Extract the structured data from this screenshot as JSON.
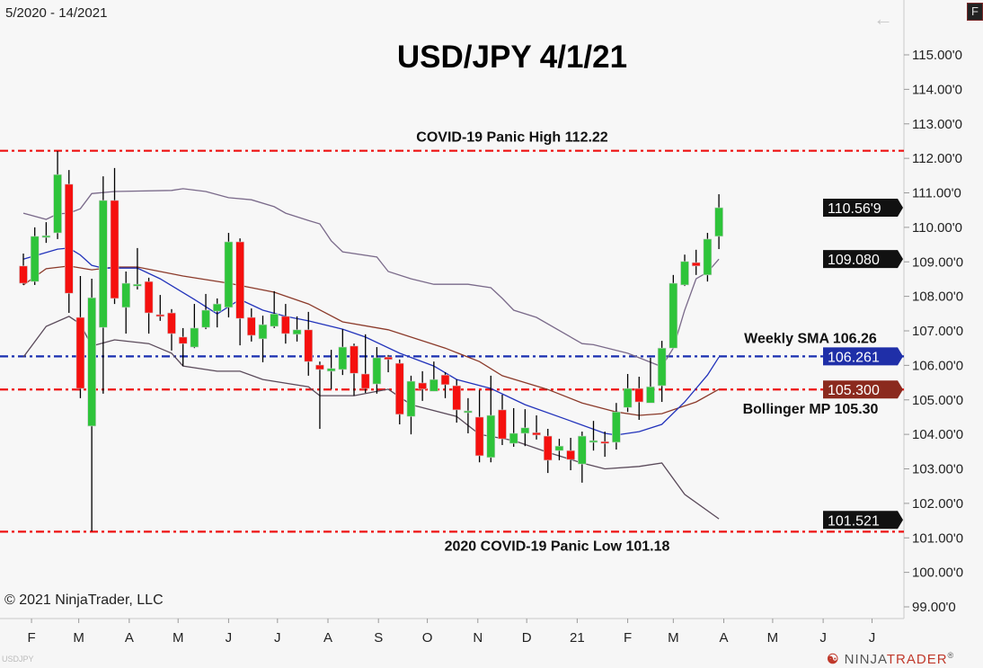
{
  "header": {
    "date_range": "5/2020 - 14/2021",
    "back_icon": "arrow-left-icon",
    "f_button": "F"
  },
  "footer": {
    "copyright": "© 2021 NinjaTrader, LLC",
    "instrument": "USDJPY",
    "logo_text_a": "NINJA",
    "logo_text_b": "TRADER",
    "logo_mark": "®"
  },
  "chart_data": {
    "type": "candlestick",
    "title": "USD/JPY 4/1/21",
    "ylim": [
      98.7,
      116.6
    ],
    "y_ticks": [
      99,
      100,
      101,
      102,
      103,
      104,
      105,
      106,
      107,
      108,
      109,
      110,
      111,
      112,
      113,
      114,
      115
    ],
    "y_tick_format_suffix": "'0",
    "x_ticks": [
      {
        "label": "F",
        "date": "2020-02-01"
      },
      {
        "label": "M",
        "date": "2020-03-01"
      },
      {
        "label": "A",
        "date": "2020-04-01"
      },
      {
        "label": "M",
        "date": "2020-05-01"
      },
      {
        "label": "J",
        "date": "2020-06-01"
      },
      {
        "label": "J",
        "date": "2020-07-01"
      },
      {
        "label": "A",
        "date": "2020-08-01"
      },
      {
        "label": "S",
        "date": "2020-09-01"
      },
      {
        "label": "O",
        "date": "2020-10-01"
      },
      {
        "label": "N",
        "date": "2020-11-01"
      },
      {
        "label": "D",
        "date": "2020-12-01"
      },
      {
        "label": "21",
        "date": "2021-01-01"
      },
      {
        "label": "F",
        "date": "2021-02-01"
      },
      {
        "label": "M",
        "date": "2021-03-01"
      },
      {
        "label": "A",
        "date": "2021-04-01"
      },
      {
        "label": "M",
        "date": "2021-05-01"
      },
      {
        "label": "J",
        "date": "2021-06-01"
      },
      {
        "label": "J",
        "date": "2021-07-01"
      }
    ],
    "colors": {
      "up": "#2ec43a",
      "down": "#f5100e",
      "wick": "#000000",
      "upper_band": "#7a6a8a",
      "middle_band": "#8b3a2a",
      "sma": "#2233bb",
      "lower_band": "#5a4a5a"
    },
    "candles": [
      [
        "2020-01-27",
        108.88,
        109.24,
        108.33,
        108.38
      ],
      [
        "2020-02-03",
        108.43,
        110.0,
        108.33,
        109.74
      ],
      [
        "2020-02-10",
        109.71,
        110.15,
        109.55,
        109.76
      ],
      [
        "2020-02-17",
        109.84,
        112.21,
        109.66,
        111.53
      ],
      [
        "2020-02-24",
        111.25,
        111.66,
        107.52,
        108.09
      ],
      [
        "2020-03-02",
        107.39,
        108.59,
        105.05,
        105.33
      ],
      [
        "2020-03-09",
        104.24,
        108.51,
        101.19,
        107.96
      ],
      [
        "2020-03-16",
        107.1,
        111.48,
        105.18,
        110.78
      ],
      [
        "2020-03-23",
        110.78,
        111.72,
        107.78,
        107.94
      ],
      [
        "2020-03-30",
        107.68,
        108.72,
        106.92,
        108.38
      ],
      [
        "2020-04-06",
        108.35,
        109.4,
        108.2,
        108.35
      ],
      [
        "2020-04-13",
        108.43,
        108.54,
        106.92,
        107.52
      ],
      [
        "2020-04-20",
        107.47,
        108.04,
        107.29,
        107.44
      ],
      [
        "2020-04-27",
        107.52,
        107.63,
        106.43,
        106.92
      ],
      [
        "2020-05-04",
        106.82,
        107.08,
        105.98,
        106.63
      ],
      [
        "2020-05-11",
        106.53,
        107.78,
        106.5,
        107.08
      ],
      [
        "2020-05-18",
        107.1,
        108.07,
        107.05,
        107.6
      ],
      [
        "2020-05-25",
        107.57,
        107.94,
        107.1,
        107.78
      ],
      [
        "2020-06-01",
        107.68,
        109.84,
        107.39,
        109.58
      ],
      [
        "2020-06-08",
        109.58,
        109.68,
        106.58,
        107.36
      ],
      [
        "2020-06-15",
        107.39,
        107.65,
        106.69,
        106.87
      ],
      [
        "2020-06-22",
        106.77,
        107.44,
        106.09,
        107.18
      ],
      [
        "2020-06-29",
        107.13,
        108.15,
        107.08,
        107.49
      ],
      [
        "2020-07-06",
        107.42,
        107.78,
        106.63,
        106.92
      ],
      [
        "2020-07-13",
        106.9,
        107.42,
        106.69,
        107.03
      ],
      [
        "2020-07-20",
        107.03,
        107.55,
        105.7,
        106.11
      ],
      [
        "2020-07-27",
        106.01,
        106.11,
        104.16,
        105.88
      ],
      [
        "2020-08-03",
        105.83,
        106.45,
        105.31,
        105.91
      ],
      [
        "2020-08-10",
        105.88,
        107.05,
        105.72,
        106.53
      ],
      [
        "2020-08-17",
        106.56,
        106.63,
        105.12,
        105.77
      ],
      [
        "2020-08-24",
        105.75,
        106.9,
        105.2,
        105.33
      ],
      [
        "2020-08-31",
        105.46,
        106.53,
        105.18,
        106.22
      ],
      [
        "2020-09-07",
        106.24,
        106.3,
        105.8,
        106.17
      ],
      [
        "2020-09-14",
        106.06,
        106.17,
        104.29,
        104.58
      ],
      [
        "2020-09-21",
        104.52,
        105.7,
        104.0,
        105.54
      ],
      [
        "2020-09-28",
        105.49,
        105.83,
        104.97,
        105.31
      ],
      [
        "2020-10-05",
        105.25,
        106.11,
        105.25,
        105.59
      ],
      [
        "2020-10-12",
        105.72,
        105.8,
        105.05,
        105.44
      ],
      [
        "2020-10-19",
        105.41,
        105.59,
        104.34,
        104.71
      ],
      [
        "2020-10-26",
        104.68,
        105.05,
        104.03,
        104.68
      ],
      [
        "2020-11-02",
        104.5,
        105.28,
        103.19,
        103.38
      ],
      [
        "2020-11-09",
        103.33,
        105.7,
        103.19,
        104.55
      ],
      [
        "2020-11-16",
        104.71,
        105.15,
        103.69,
        103.87
      ],
      [
        "2020-11-23",
        103.74,
        104.76,
        103.64,
        104.03
      ],
      [
        "2020-11-30",
        104.03,
        104.73,
        103.66,
        104.19
      ],
      [
        "2020-12-07",
        104.05,
        104.55,
        103.85,
        103.98
      ],
      [
        "2020-12-14",
        103.95,
        104.16,
        102.88,
        103.25
      ],
      [
        "2020-12-21",
        103.53,
        103.87,
        103.25,
        103.66
      ],
      [
        "2020-12-28",
        103.53,
        103.9,
        102.96,
        103.27
      ],
      [
        "2021-01-04",
        103.14,
        104.08,
        102.6,
        103.95
      ],
      [
        "2021-01-11",
        103.82,
        104.39,
        103.53,
        103.82
      ],
      [
        "2021-01-18",
        103.79,
        104.08,
        103.35,
        103.74
      ],
      [
        "2021-01-25",
        103.77,
        104.91,
        103.56,
        104.65
      ],
      [
        "2021-02-01",
        104.78,
        105.75,
        104.65,
        105.33
      ],
      [
        "2021-02-08",
        105.33,
        105.67,
        104.42,
        104.94
      ],
      [
        "2021-02-15",
        104.91,
        106.22,
        104.91,
        105.38
      ],
      [
        "2021-02-22",
        105.41,
        106.71,
        104.94,
        106.5
      ],
      [
        "2021-03-01",
        106.5,
        108.62,
        106.5,
        108.38
      ],
      [
        "2021-03-08",
        108.33,
        109.21,
        108.3,
        109.01
      ],
      [
        "2021-03-15",
        108.98,
        109.35,
        108.62,
        108.88
      ],
      [
        "2021-03-22",
        108.62,
        109.84,
        108.43,
        109.66
      ],
      [
        "2021-03-29",
        109.74,
        110.96,
        109.37,
        110.57
      ]
    ],
    "candle_fields": [
      "date",
      "open",
      "high",
      "low",
      "close"
    ],
    "indicators": [
      {
        "key": "upper_band",
        "points": [
          [
            "2020-01-27",
            110.41
          ],
          [
            "2020-02-10",
            110.23
          ],
          [
            "2020-02-17",
            110.39
          ],
          [
            "2020-02-24",
            110.41
          ],
          [
            "2020-03-02",
            110.54
          ],
          [
            "2020-03-09",
            110.98
          ],
          [
            "2020-03-23",
            111.04
          ],
          [
            "2020-04-27",
            111.07
          ],
          [
            "2020-05-04",
            111.12
          ],
          [
            "2020-05-18",
            111.04
          ],
          [
            "2020-06-01",
            110.86
          ],
          [
            "2020-06-15",
            110.8
          ],
          [
            "2020-06-29",
            110.6
          ],
          [
            "2020-07-06",
            110.41
          ],
          [
            "2020-07-20",
            110.2
          ],
          [
            "2020-07-27",
            110.1
          ],
          [
            "2020-08-03",
            109.61
          ],
          [
            "2020-08-10",
            109.29
          ],
          [
            "2020-08-31",
            109.14
          ],
          [
            "2020-09-07",
            108.72
          ],
          [
            "2020-09-21",
            108.51
          ],
          [
            "2020-10-05",
            108.35
          ],
          [
            "2020-10-26",
            108.35
          ],
          [
            "2020-11-09",
            108.25
          ],
          [
            "2020-11-16",
            107.94
          ],
          [
            "2020-11-23",
            107.6
          ],
          [
            "2020-12-07",
            107.39
          ],
          [
            "2021-01-04",
            106.63
          ],
          [
            "2021-01-11",
            106.6
          ],
          [
            "2021-02-01",
            106.35
          ],
          [
            "2021-02-22",
            105.96
          ],
          [
            "2021-03-01",
            106.5
          ],
          [
            "2021-03-08",
            107.6
          ],
          [
            "2021-03-15",
            108.51
          ],
          [
            "2021-03-22",
            108.7
          ],
          [
            "2021-03-29",
            109.08
          ]
        ]
      },
      {
        "key": "middle_band",
        "points": [
          [
            "2020-01-27",
            108.33
          ],
          [
            "2020-02-10",
            108.8
          ],
          [
            "2020-02-24",
            108.88
          ],
          [
            "2020-03-09",
            108.77
          ],
          [
            "2020-03-23",
            108.85
          ],
          [
            "2020-04-06",
            108.85
          ],
          [
            "2020-05-04",
            108.59
          ],
          [
            "2020-06-01",
            108.38
          ],
          [
            "2020-06-29",
            108.12
          ],
          [
            "2020-07-20",
            107.78
          ],
          [
            "2020-08-10",
            107.26
          ],
          [
            "2020-09-07",
            107.03
          ],
          [
            "2020-10-12",
            106.5
          ],
          [
            "2020-11-02",
            106.11
          ],
          [
            "2020-11-16",
            105.7
          ],
          [
            "2020-12-14",
            105.3
          ],
          [
            "2021-01-04",
            104.91
          ],
          [
            "2021-01-25",
            104.65
          ],
          [
            "2021-02-08",
            104.55
          ],
          [
            "2021-02-22",
            104.6
          ],
          [
            "2021-03-15",
            104.94
          ],
          [
            "2021-03-29",
            105.31
          ]
        ]
      },
      {
        "key": "sma",
        "points": [
          [
            "2020-01-27",
            109.08
          ],
          [
            "2020-02-17",
            109.37
          ],
          [
            "2020-02-24",
            109.4
          ],
          [
            "2020-03-02",
            109.2
          ],
          [
            "2020-03-09",
            108.9
          ],
          [
            "2020-03-16",
            108.82
          ],
          [
            "2020-04-06",
            108.82
          ],
          [
            "2020-04-20",
            108.51
          ],
          [
            "2020-05-11",
            107.91
          ],
          [
            "2020-05-25",
            107.49
          ],
          [
            "2020-06-08",
            107.91
          ],
          [
            "2020-06-22",
            107.6
          ],
          [
            "2020-07-06",
            107.42
          ],
          [
            "2020-07-20",
            107.29
          ],
          [
            "2020-08-10",
            107.05
          ],
          [
            "2020-08-24",
            106.82
          ],
          [
            "2020-09-14",
            106.35
          ],
          [
            "2020-10-05",
            105.98
          ],
          [
            "2020-10-19",
            105.59
          ],
          [
            "2020-11-09",
            105.33
          ],
          [
            "2020-11-30",
            104.86
          ],
          [
            "2020-12-28",
            104.39
          ],
          [
            "2021-01-18",
            104.03
          ],
          [
            "2021-01-25",
            103.98
          ],
          [
            "2021-02-08",
            104.08
          ],
          [
            "2021-02-22",
            104.29
          ],
          [
            "2021-03-08",
            104.94
          ],
          [
            "2021-03-22",
            105.72
          ],
          [
            "2021-03-29",
            106.24
          ]
        ]
      },
      {
        "key": "lower_band",
        "points": [
          [
            "2020-01-27",
            106.24
          ],
          [
            "2020-02-10",
            107.13
          ],
          [
            "2020-02-24",
            107.42
          ],
          [
            "2020-03-02",
            107.2
          ],
          [
            "2020-03-09",
            106.56
          ],
          [
            "2020-03-23",
            106.74
          ],
          [
            "2020-04-13",
            106.63
          ],
          [
            "2020-04-27",
            106.35
          ],
          [
            "2020-05-04",
            105.98
          ],
          [
            "2020-05-25",
            105.83
          ],
          [
            "2020-06-08",
            105.83
          ],
          [
            "2020-06-22",
            105.59
          ],
          [
            "2020-07-20",
            105.38
          ],
          [
            "2020-07-27",
            105.12
          ],
          [
            "2020-08-17",
            105.12
          ],
          [
            "2020-09-07",
            105.31
          ],
          [
            "2020-09-21",
            104.86
          ],
          [
            "2020-10-19",
            104.52
          ],
          [
            "2020-11-02",
            104.0
          ],
          [
            "2020-11-23",
            103.82
          ],
          [
            "2020-12-14",
            103.48
          ],
          [
            "2021-01-04",
            103.17
          ],
          [
            "2021-01-18",
            103.0
          ],
          [
            "2021-02-08",
            103.07
          ],
          [
            "2021-02-22",
            103.17
          ],
          [
            "2021-03-08",
            102.26
          ],
          [
            "2021-03-29",
            101.55
          ]
        ]
      }
    ],
    "levels": [
      {
        "price": 112.22,
        "color": "#ee1111",
        "label": "COVID-19 Panic High 112.22",
        "label_pos": "above-center"
      },
      {
        "price": 106.26,
        "color": "#1a2fb0",
        "label": "Weekly SMA 106.26",
        "label_pos": "above-right"
      },
      {
        "price": 105.3,
        "color": "#ee1111",
        "label": "Bollinger MP 105.30",
        "label_pos": "below-right"
      },
      {
        "price": 101.18,
        "color": "#ee1111",
        "label": "2020 COVID-19 Panic Low  101.18",
        "label_pos": "below-center"
      }
    ],
    "price_tags": [
      {
        "text": "110.56'9",
        "price": 110.569,
        "bg": "#111111"
      },
      {
        "text": "109.080",
        "price": 109.08,
        "bg": "#111111"
      },
      {
        "text": "106.261",
        "price": 106.261,
        "bg": "#1f2fa8"
      },
      {
        "text": "105.300",
        "price": 105.3,
        "bg": "#8b2a1e"
      },
      {
        "text": "101.521",
        "price": 101.521,
        "bg": "#111111"
      }
    ]
  }
}
